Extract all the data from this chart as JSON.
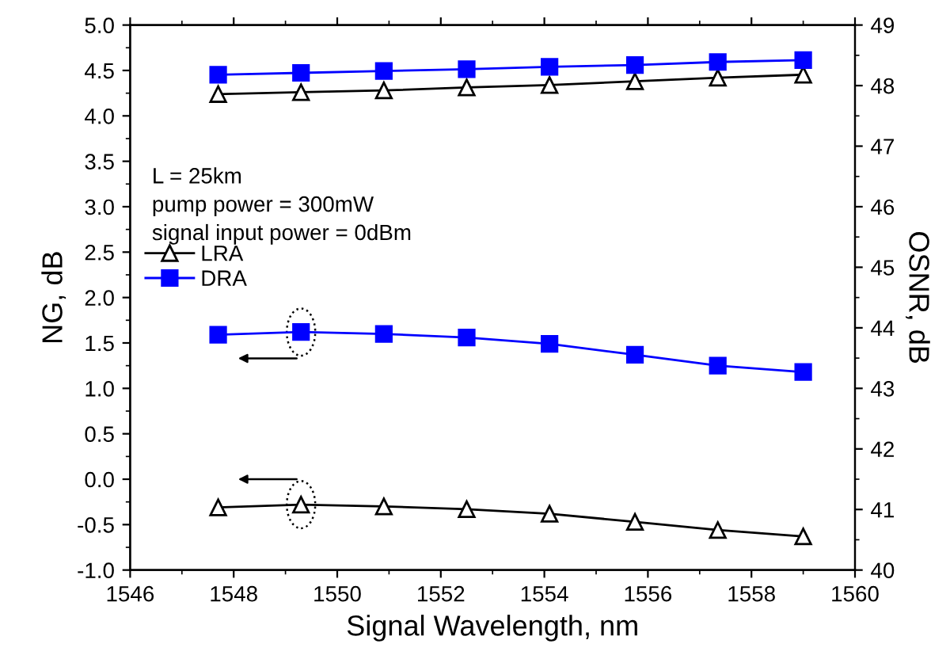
{
  "chart_data": {
    "type": "line",
    "xlabel": "Signal Wavelength, nm",
    "ylabel": "NG, dB",
    "y2label": "OSNR, dB",
    "x": [
      1547.7,
      1549.3,
      1550.9,
      1552.5,
      1554.1,
      1555.75,
      1557.35,
      1559.0
    ],
    "series": [
      {
        "name": "LRA",
        "color": "#000000",
        "marker": "triangle",
        "values": [
          -0.31,
          -0.28,
          -0.3,
          -0.33,
          -0.38,
          -0.47,
          -0.56,
          -0.63
        ]
      },
      {
        "name": "DRA",
        "color": "#0000ff",
        "marker": "square",
        "values": [
          1.59,
          1.62,
          1.6,
          1.56,
          1.49,
          1.37,
          1.25,
          1.18
        ]
      },
      {
        "color": "#000000",
        "marker": "triangle",
        "axis": "y2",
        "values": [
          47.86,
          47.89,
          47.92,
          47.97,
          48.01,
          48.07,
          48.13,
          48.18
        ]
      },
      {
        "color": "#0000ff",
        "marker": "square",
        "axis": "y2",
        "values": [
          48.18,
          48.21,
          48.24,
          48.27,
          48.31,
          48.34,
          48.39,
          48.42
        ]
      }
    ],
    "xlim": [
      1546,
      1560
    ],
    "xticks": [
      1546,
      1548,
      1550,
      1552,
      1554,
      1556,
      1558,
      1560
    ],
    "ylim": [
      -1.0,
      5.0
    ],
    "yticks": [
      {
        "value": -1,
        "label": "-1.0"
      },
      {
        "value": -0.5,
        "label": "-0.5"
      },
      {
        "value": 0,
        "label": "0.0"
      },
      {
        "value": 0.5,
        "label": "0.5"
      },
      {
        "value": 1,
        "label": "1.0"
      },
      {
        "value": 1.5,
        "label": "1.5"
      },
      {
        "value": 2,
        "label": "2.0"
      },
      {
        "value": 2.5,
        "label": "2.5"
      },
      {
        "value": 3,
        "label": "3.0"
      },
      {
        "value": 3.5,
        "label": "3.5"
      },
      {
        "value": 4,
        "label": "4.0"
      },
      {
        "value": 4.5,
        "label": "4.5"
      },
      {
        "value": 5,
        "label": "5.0"
      }
    ],
    "y2lim": [
      40,
      49
    ],
    "y2ticks": [
      40,
      41,
      42,
      43,
      44,
      45,
      46,
      47,
      48,
      49
    ],
    "annotations": [
      "L = 25km",
      "pump power = 300mW",
      "signal input power = 0dBm"
    ],
    "legend": "left",
    "grid": false
  }
}
